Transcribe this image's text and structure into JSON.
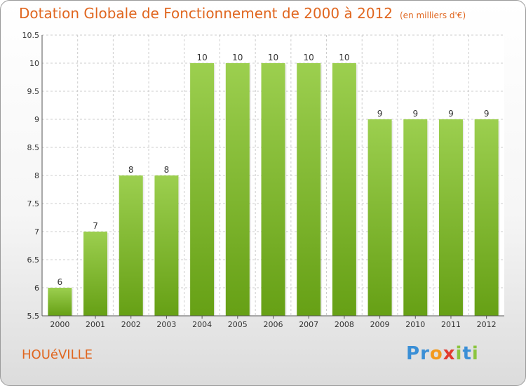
{
  "header": {
    "title": "Dotation Globale de Fonctionnement de 2000 à 2012",
    "unit": "(en milliers d'€)"
  },
  "footer": {
    "commune": "HOUéVILLE",
    "brand_letters": [
      {
        "ch": "P",
        "color": "#3a8fd6"
      },
      {
        "ch": "r",
        "color": "#3a8fd6"
      },
      {
        "ch": "o",
        "color": "#f39a1e"
      },
      {
        "ch": "x",
        "color": "#e23b2e"
      },
      {
        "ch": "i",
        "color": "#8bc53f"
      },
      {
        "ch": "t",
        "color": "#3a8fd6"
      },
      {
        "ch": "i",
        "color": "#8bc53f"
      }
    ]
  },
  "chart_data": {
    "type": "bar",
    "categories": [
      "2000",
      "2001",
      "2002",
      "2003",
      "2004",
      "2005",
      "2006",
      "2007",
      "2008",
      "2009",
      "2010",
      "2011",
      "2012"
    ],
    "values": [
      6,
      7,
      8,
      8,
      10,
      10,
      10,
      10,
      10,
      9,
      9,
      9,
      9
    ],
    "data_labels": [
      "6",
      "7",
      "8",
      "8",
      "10",
      "10",
      "10",
      "10",
      "10",
      "9",
      "9",
      "9",
      "9"
    ],
    "ylim": [
      5.5,
      10.5
    ],
    "yticks": [
      "5.5",
      "6",
      "6.5",
      "7",
      "7.5",
      "8",
      "8.5",
      "9",
      "9.5",
      "10",
      "10.5"
    ],
    "grid": true,
    "colors": {
      "bar_top": "#9ccf4f",
      "bar_bottom": "#66a015",
      "grid": "#cccccc",
      "axis": "#555555"
    }
  }
}
